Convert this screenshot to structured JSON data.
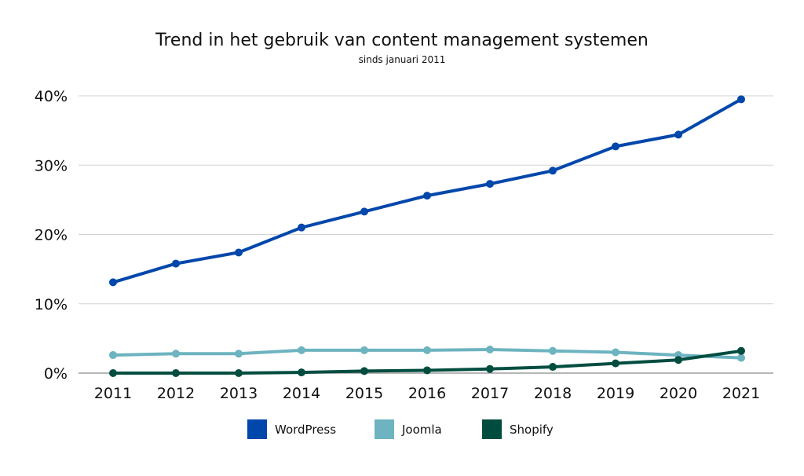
{
  "chart_data": {
    "type": "line",
    "title": "Trend in het gebruik van content management systemen",
    "subtitle": "sinds januari 2011",
    "xlabel": "",
    "ylabel": "",
    "x": [
      "2011",
      "2012",
      "2013",
      "2014",
      "2015",
      "2016",
      "2017",
      "2018",
      "2019",
      "2020",
      "2021"
    ],
    "ylim": [
      0,
      40
    ],
    "y_ticks": [
      "0%",
      "10%",
      "20%",
      "30%",
      "40%"
    ],
    "grid": true,
    "legend_position": "bottom",
    "series": [
      {
        "name": "WordPress",
        "color": "#0047AB",
        "values": [
          13.1,
          15.8,
          17.4,
          21.0,
          23.3,
          25.6,
          27.3,
          29.2,
          32.7,
          34.4,
          39.5
        ]
      },
      {
        "name": "Joomla",
        "color": "#6DB3C0",
        "values": [
          2.6,
          2.8,
          2.8,
          3.3,
          3.3,
          3.3,
          3.4,
          3.2,
          3.0,
          2.6,
          2.2
        ]
      },
      {
        "name": "Shopify",
        "color": "#004D40",
        "values": [
          0.0,
          0.0,
          0.0,
          0.1,
          0.3,
          0.4,
          0.6,
          0.9,
          1.4,
          1.9,
          3.2
        ]
      }
    ]
  }
}
